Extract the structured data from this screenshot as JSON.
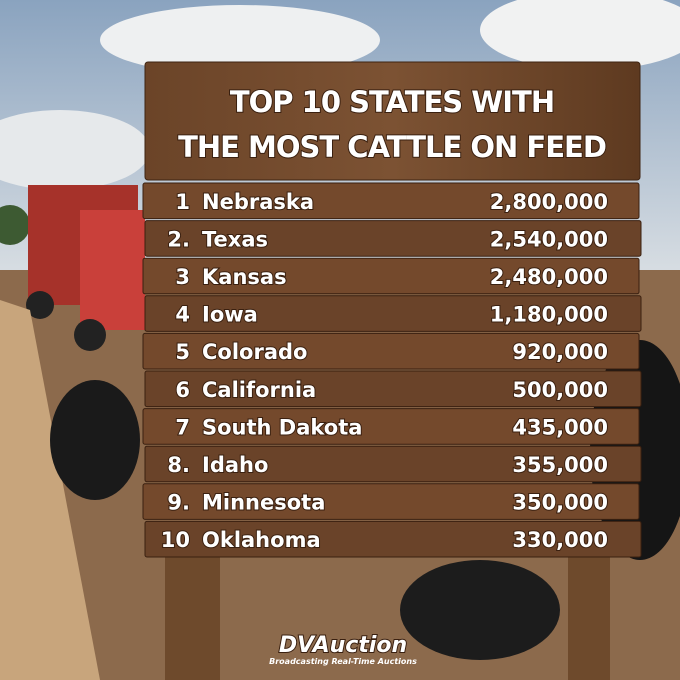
{
  "header": {
    "title_lines": [
      "TOP 10 STATES WITH",
      "THE MOST CATTLE ON FEED"
    ]
  },
  "table": {
    "rows": [
      [
        "1",
        "Nebraska",
        "2,800,000"
      ],
      [
        "2.",
        "Texas",
        "2,540,000"
      ],
      [
        "3",
        "Kansas",
        "2,480,000"
      ],
      [
        "4",
        "Iowa",
        "1,180,000"
      ],
      [
        "5",
        "Colorado",
        "920,000"
      ],
      [
        "6",
        "California",
        "500,000"
      ],
      [
        "7",
        "South Dakota",
        "435,000"
      ],
      [
        "8.",
        "Idaho",
        "355,000"
      ],
      [
        "9.",
        "Minnesota",
        "350,000"
      ],
      [
        "10",
        "Oklahoma",
        "330,000"
      ]
    ]
  },
  "logo": {
    "name": "DVAuction",
    "tagline": "Broadcasting Real-Time Auctions"
  }
}
